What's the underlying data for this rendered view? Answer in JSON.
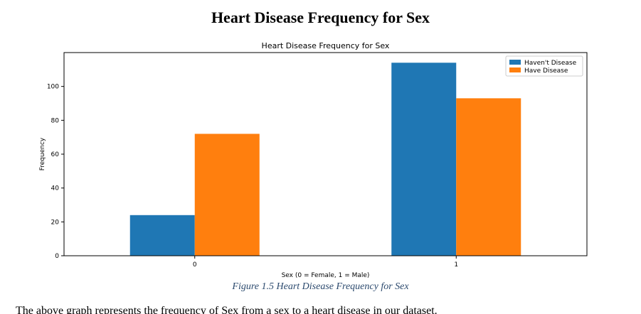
{
  "document": {
    "heading": "Heart Disease Frequency for Sex",
    "caption": "Figure 1.5 Heart Disease Frequency for Sex",
    "body_text": "The above graph represents the frequency of Sex from a sex to a heart disease in our dataset."
  },
  "chart_data": {
    "type": "bar",
    "title": "Heart Disease Frequency for Sex",
    "xlabel": "Sex (0 = Female, 1 = Male)",
    "ylabel": "Frequency",
    "categories": [
      "0",
      "1"
    ],
    "series": [
      {
        "name": "Haven't Disease",
        "values": [
          24,
          114
        ]
      },
      {
        "name": "Have Disease",
        "values": [
          72,
          93
        ]
      }
    ],
    "ylim": [
      0,
      120
    ],
    "yticks": [
      0,
      20,
      40,
      60,
      80,
      100
    ],
    "grid": false,
    "legend": "top-right",
    "colors": [
      "#1f77b4",
      "#ff7f0e"
    ]
  }
}
